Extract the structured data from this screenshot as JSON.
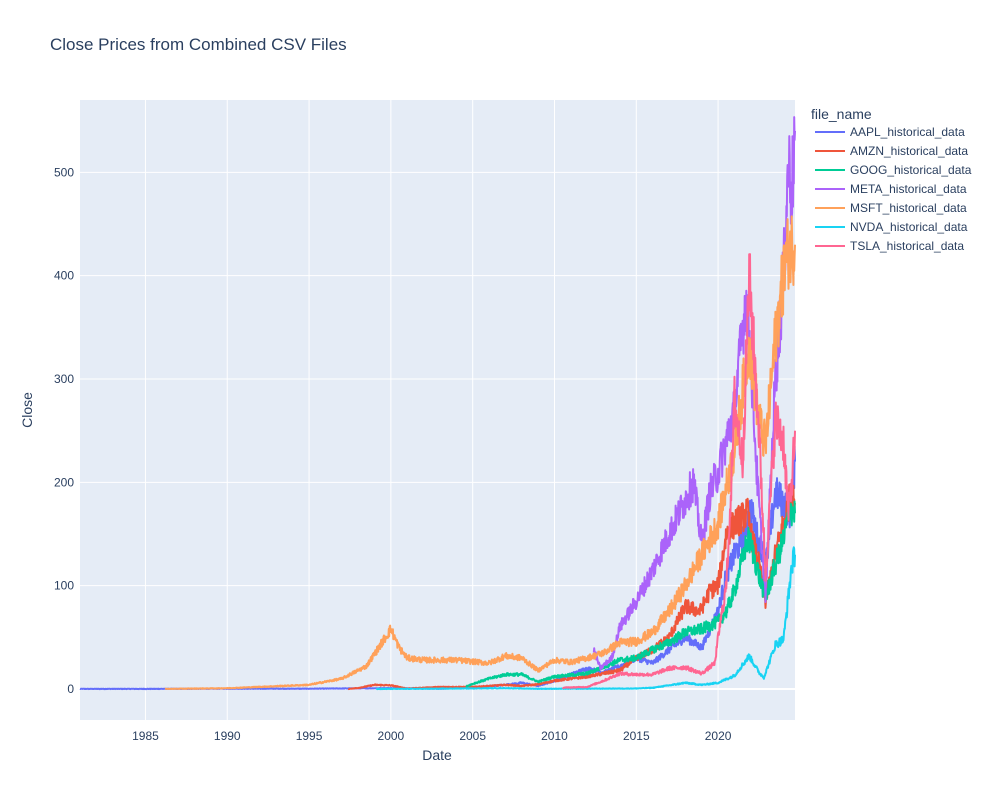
{
  "chart_data": {
    "type": "line",
    "title": "Close Prices from Combined CSV Files",
    "xlabel": "Date",
    "ylabel": "Close",
    "xlim": [
      1981.0,
      2024.7
    ],
    "ylim": [
      -30,
      570
    ],
    "x_ticks": [
      1985,
      1990,
      1995,
      2000,
      2005,
      2010,
      2015,
      2020
    ],
    "y_ticks": [
      0,
      100,
      200,
      300,
      400,
      500
    ],
    "grid": true,
    "plot_background": "#e5ecf6",
    "legend": {
      "title": "file_name",
      "position": "right"
    },
    "series": [
      {
        "name": "AAPL_historical_data",
        "color": "#636efa",
        "points": [
          [
            1981.0,
            0.1
          ],
          [
            1985,
            0.1
          ],
          [
            1990,
            0.3
          ],
          [
            1995,
            0.3
          ],
          [
            2000,
            0.8
          ],
          [
            2003,
            0.3
          ],
          [
            2005,
            1.5
          ],
          [
            2007,
            4
          ],
          [
            2008,
            6
          ],
          [
            2009,
            3
          ],
          [
            2010,
            8
          ],
          [
            2012,
            20
          ],
          [
            2013,
            16
          ],
          [
            2014,
            22
          ],
          [
            2015,
            30
          ],
          [
            2016,
            25
          ],
          [
            2017,
            38
          ],
          [
            2018,
            50
          ],
          [
            2019,
            40
          ],
          [
            2020,
            75
          ],
          [
            2020.5,
            110
          ],
          [
            2021,
            130
          ],
          [
            2021.5,
            145
          ],
          [
            2022,
            175
          ],
          [
            2022.5,
            140
          ],
          [
            2023,
            128
          ],
          [
            2023.5,
            190
          ],
          [
            2024,
            180
          ],
          [
            2024.4,
            170
          ],
          [
            2024.7,
            220
          ]
        ]
      },
      {
        "name": "AMZN_historical_data",
        "color": "#ef553b",
        "points": [
          [
            1997.4,
            0.1
          ],
          [
            1998,
            1
          ],
          [
            1999,
            4
          ],
          [
            2000,
            3.5
          ],
          [
            2001,
            0.5
          ],
          [
            2003,
            2
          ],
          [
            2005,
            2
          ],
          [
            2007,
            4
          ],
          [
            2008,
            3
          ],
          [
            2009,
            4.5
          ],
          [
            2010,
            8
          ],
          [
            2012,
            12
          ],
          [
            2014,
            18
          ],
          [
            2015,
            30
          ],
          [
            2016,
            38
          ],
          [
            2017,
            50
          ],
          [
            2018,
            80
          ],
          [
            2018.9,
            75
          ],
          [
            2019.5,
            95
          ],
          [
            2020,
            100
          ],
          [
            2020.5,
            150
          ],
          [
            2021,
            160
          ],
          [
            2021.8,
            170
          ],
          [
            2022,
            150
          ],
          [
            2022.5,
            120
          ],
          [
            2022.9,
            85
          ],
          [
            2023.5,
            130
          ],
          [
            2024,
            160
          ],
          [
            2024.4,
            185
          ],
          [
            2024.7,
            180
          ]
        ]
      },
      {
        "name": "GOOG_historical_data",
        "color": "#00cc96",
        "points": [
          [
            2004.6,
            2.5
          ],
          [
            2005,
            5
          ],
          [
            2006,
            10
          ],
          [
            2007,
            14
          ],
          [
            2008,
            14
          ],
          [
            2009,
            7
          ],
          [
            2010,
            12
          ],
          [
            2012,
            15
          ],
          [
            2014,
            28
          ],
          [
            2015,
            30
          ],
          [
            2016,
            38
          ],
          [
            2017,
            45
          ],
          [
            2018,
            55
          ],
          [
            2019,
            58
          ],
          [
            2020,
            65
          ],
          [
            2020.5,
            75
          ],
          [
            2021,
            95
          ],
          [
            2021.8,
            145
          ],
          [
            2022,
            140
          ],
          [
            2022.5,
            110
          ],
          [
            2022.9,
            88
          ],
          [
            2023.5,
            120
          ],
          [
            2024,
            145
          ],
          [
            2024.4,
            175
          ],
          [
            2024.7,
            170
          ]
        ]
      },
      {
        "name": "META_historical_data",
        "color": "#ab63fa",
        "points": [
          [
            2012.4,
            38
          ],
          [
            2012.8,
            20
          ],
          [
            2013.5,
            30
          ],
          [
            2014,
            60
          ],
          [
            2015,
            85
          ],
          [
            2016,
            115
          ],
          [
            2017,
            150
          ],
          [
            2018.5,
            200
          ],
          [
            2019,
            140
          ],
          [
            2019.5,
            190
          ],
          [
            2020,
            210
          ],
          [
            2020.5,
            240
          ],
          [
            2021,
            270
          ],
          [
            2021.7,
            380
          ],
          [
            2022,
            320
          ],
          [
            2022.4,
            200
          ],
          [
            2022.9,
            90
          ],
          [
            2023.5,
            300
          ],
          [
            2024,
            400
          ],
          [
            2024.3,
            510
          ],
          [
            2024.5,
            480
          ],
          [
            2024.7,
            540
          ]
        ]
      },
      {
        "name": "MSFT_historical_data",
        "color": "#ffa15a",
        "points": [
          [
            1986.2,
            0.1
          ],
          [
            1990,
            0.8
          ],
          [
            1995,
            4
          ],
          [
            1997,
            10
          ],
          [
            1998.5,
            22
          ],
          [
            2000,
            58
          ],
          [
            2000.5,
            40
          ],
          [
            2001,
            30
          ],
          [
            2002,
            28
          ],
          [
            2004,
            28
          ],
          [
            2006,
            25
          ],
          [
            2007,
            32
          ],
          [
            2008,
            30
          ],
          [
            2009,
            18
          ],
          [
            2010,
            28
          ],
          [
            2011,
            26
          ],
          [
            2012,
            30
          ],
          [
            2013,
            35
          ],
          [
            2014,
            45
          ],
          [
            2015,
            46
          ],
          [
            2016,
            55
          ],
          [
            2017,
            75
          ],
          [
            2018,
            100
          ],
          [
            2019,
            130
          ],
          [
            2020,
            160
          ],
          [
            2021,
            230
          ],
          [
            2021.9,
            335
          ],
          [
            2022.5,
            260
          ],
          [
            2022.9,
            235
          ],
          [
            2023.5,
            340
          ],
          [
            2024,
            400
          ],
          [
            2024.3,
            425
          ],
          [
            2024.7,
            430
          ]
        ]
      },
      {
        "name": "NVDA_historical_data",
        "color": "#19d3f3",
        "points": [
          [
            1999.1,
            0.04
          ],
          [
            2002,
            0.2
          ],
          [
            2007,
            0.8
          ],
          [
            2009,
            0.2
          ],
          [
            2012,
            0.3
          ],
          [
            2015,
            0.5
          ],
          [
            2016,
            1.2
          ],
          [
            2017,
            3.5
          ],
          [
            2018,
            6
          ],
          [
            2019,
            4
          ],
          [
            2020,
            6
          ],
          [
            2021,
            13
          ],
          [
            2021.9,
            32
          ],
          [
            2022.5,
            16
          ],
          [
            2022.8,
            11
          ],
          [
            2023.5,
            43
          ],
          [
            2024,
            48
          ],
          [
            2024.3,
            90
          ],
          [
            2024.5,
            120
          ],
          [
            2024.7,
            130
          ]
        ]
      },
      {
        "name": "TSLA_historical_data",
        "color": "#ff6692",
        "points": [
          [
            2010.5,
            1.3
          ],
          [
            2012,
            2
          ],
          [
            2013,
            8
          ],
          [
            2014,
            15
          ],
          [
            2015,
            14
          ],
          [
            2016,
            14
          ],
          [
            2017,
            20
          ],
          [
            2018,
            21
          ],
          [
            2019,
            15
          ],
          [
            2019.8,
            25
          ],
          [
            2020,
            50
          ],
          [
            2020.5,
            100
          ],
          [
            2020.9,
            230
          ],
          [
            2021,
            280
          ],
          [
            2021.5,
            220
          ],
          [
            2021.9,
            400
          ],
          [
            2022.3,
            300
          ],
          [
            2022.5,
            250
          ],
          [
            2022.9,
            110
          ],
          [
            2023.5,
            260
          ],
          [
            2024,
            240
          ],
          [
            2024.3,
            170
          ],
          [
            2024.5,
            200
          ],
          [
            2024.7,
            250
          ]
        ]
      }
    ]
  }
}
